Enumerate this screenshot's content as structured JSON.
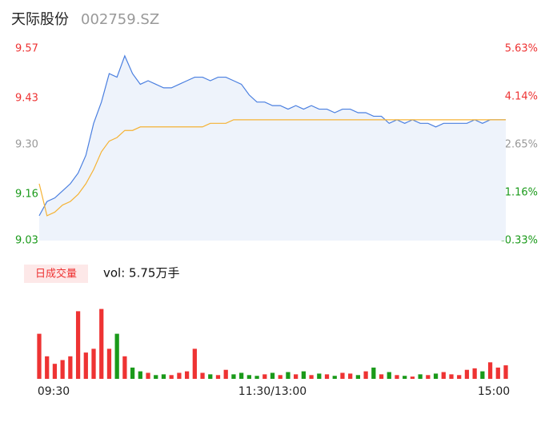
{
  "chart_data": {
    "type": "line",
    "title": "天际股份",
    "subtitle": "002759.SZ",
    "xlim": [
      0,
      240
    ],
    "xticks": [
      {
        "value": 0,
        "label": "09:30"
      },
      {
        "value": 120,
        "label": "11:30/13:00"
      },
      {
        "value": 240,
        "label": "15:00"
      }
    ],
    "ylim": [
      9.03,
      9.57
    ],
    "yticks": [
      9.03,
      9.16,
      {
        "value": 9.3,
        "label": "9.30"
      },
      9.43,
      9.57
    ],
    "y2lim": [
      -0.33,
      5.63
    ],
    "y2ticks": [
      {
        "value": -0.33,
        "label": "-0.33%"
      },
      {
        "value": 1.16,
        "label": "1.16%"
      },
      {
        "value": 2.65,
        "label": "2.65%"
      },
      {
        "value": 4.14,
        "label": "4.14%"
      },
      {
        "value": 5.63,
        "label": "5.63%"
      }
    ],
    "x": [
      0,
      4,
      8,
      12,
      16,
      20,
      24,
      28,
      32,
      36,
      40,
      44,
      48,
      52,
      56,
      60,
      64,
      68,
      72,
      76,
      80,
      84,
      88,
      92,
      96,
      100,
      104,
      108,
      112,
      116,
      120,
      124,
      128,
      132,
      136,
      140,
      144,
      148,
      152,
      156,
      160,
      164,
      168,
      172,
      176,
      180,
      184,
      188,
      192,
      196,
      200,
      204,
      208,
      212,
      216,
      220,
      224,
      228,
      232,
      236,
      240
    ],
    "series": [
      {
        "name": "price",
        "color": "#4a7fe0",
        "values": [
          9.1,
          9.14,
          9.15,
          9.17,
          9.19,
          9.22,
          9.27,
          9.36,
          9.42,
          9.5,
          9.49,
          9.55,
          9.5,
          9.47,
          9.48,
          9.47,
          9.46,
          9.46,
          9.47,
          9.48,
          9.49,
          9.49,
          9.48,
          9.49,
          9.49,
          9.48,
          9.47,
          9.44,
          9.42,
          9.42,
          9.41,
          9.41,
          9.4,
          9.41,
          9.4,
          9.41,
          9.4,
          9.4,
          9.39,
          9.4,
          9.4,
          9.39,
          9.39,
          9.38,
          9.38,
          9.36,
          9.37,
          9.36,
          9.37,
          9.36,
          9.36,
          9.35,
          9.36,
          9.36,
          9.36,
          9.36,
          9.37,
          9.36,
          9.37,
          9.37,
          9.37
        ]
      },
      {
        "name": "average",
        "color": "#f5b335",
        "values": [
          9.19,
          9.1,
          9.11,
          9.13,
          9.14,
          9.16,
          9.19,
          9.23,
          9.28,
          9.31,
          9.32,
          9.34,
          9.34,
          9.35,
          9.35,
          9.35,
          9.35,
          9.35,
          9.35,
          9.35,
          9.35,
          9.35,
          9.36,
          9.36,
          9.36,
          9.37,
          9.37,
          9.37,
          9.37,
          9.37,
          9.37,
          9.37,
          9.37,
          9.37,
          9.37,
          9.37,
          9.37,
          9.37,
          9.37,
          9.37,
          9.37,
          9.37,
          9.37,
          9.37,
          9.37,
          9.37,
          9.37,
          9.37,
          9.37,
          9.37,
          9.37,
          9.37,
          9.37,
          9.37,
          9.37,
          9.37,
          9.37,
          9.37,
          9.37,
          9.37,
          9.37
        ]
      }
    ],
    "volume": {
      "label": "日成交量",
      "text": "vol: 5.75万手",
      "ylim": [
        0,
        100
      ],
      "values": [
        60,
        30,
        20,
        25,
        30,
        90,
        35,
        40,
        93,
        40,
        60,
        30,
        15,
        10,
        8,
        5,
        6,
        5,
        8,
        10,
        40,
        8,
        6,
        5,
        12,
        6,
        8,
        5,
        4,
        6,
        8,
        5,
        9,
        6,
        10,
        5,
        7,
        6,
        4,
        8,
        7,
        5,
        10,
        15,
        6,
        9,
        5,
        4,
        3,
        6,
        5,
        7,
        9,
        6,
        5,
        12,
        14,
        10,
        22,
        15,
        18
      ]
    }
  }
}
